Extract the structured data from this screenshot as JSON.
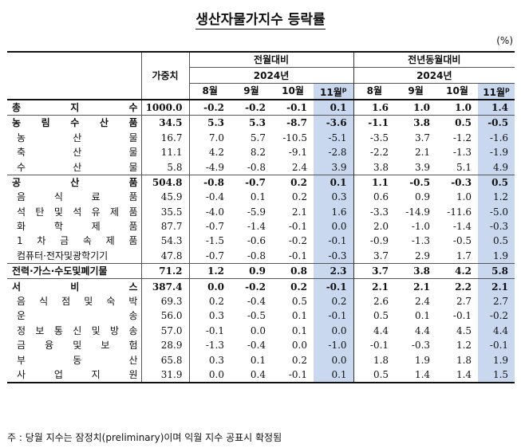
{
  "title": "생산자물가지수 등락률",
  "unit": "(%)",
  "header": {
    "weight": "가중치",
    "mom": "전월대비",
    "yoy": "전년동월대비",
    "year": "2024년",
    "months": [
      "8월",
      "9월",
      "10월",
      "11월"
    ],
    "prelim_mark": "p"
  },
  "rows": [
    {
      "label": "총 지 수",
      "weight": "1000.0",
      "mom": [
        "-0.2",
        "-0.2",
        "-0.1",
        "0.1"
      ],
      "yoy": [
        "1.6",
        "1.0",
        "1.0",
        "1.4"
      ],
      "level": "major"
    },
    {
      "label": "농 림 수 산 품",
      "weight": "34.5",
      "mom": [
        "5.3",
        "5.3",
        "-8.7",
        "-3.6"
      ],
      "yoy": [
        "-1.1",
        "3.8",
        "0.5",
        "-0.5"
      ],
      "level": "major"
    },
    {
      "label": "농 산 물",
      "weight": "16.7",
      "mom": [
        "7.0",
        "5.7",
        "-10.5",
        "-5.1"
      ],
      "yoy": [
        "-3.5",
        "3.7",
        "-1.2",
        "-1.6"
      ],
      "level": "sub"
    },
    {
      "label": "축 산 물",
      "weight": "11.1",
      "mom": [
        "4.2",
        "8.2",
        "-9.1",
        "-2.8"
      ],
      "yoy": [
        "-2.2",
        "2.1",
        "-1.3",
        "-1.9"
      ],
      "level": "sub"
    },
    {
      "label": "수 산 물",
      "weight": "5.8",
      "mom": [
        "-4.9",
        "-0.8",
        "2.4",
        "3.9"
      ],
      "yoy": [
        "3.8",
        "3.9",
        "5.1",
        "4.9"
      ],
      "level": "sub"
    },
    {
      "label": "공 산 품",
      "weight": "504.8",
      "mom": [
        "-0.8",
        "-0.7",
        "0.2",
        "0.1"
      ],
      "yoy": [
        "1.1",
        "-0.5",
        "-0.3",
        "0.5"
      ],
      "level": "major"
    },
    {
      "label": "음 식 료 품",
      "weight": "45.9",
      "mom": [
        "-0.4",
        "0.1",
        "0.2",
        "0.3"
      ],
      "yoy": [
        "0.6",
        "0.9",
        "1.0",
        "1.2"
      ],
      "level": "sub"
    },
    {
      "label": "석 탄 및 석 유 제 품",
      "weight": "35.5",
      "mom": [
        "-4.0",
        "-5.9",
        "2.1",
        "1.6"
      ],
      "yoy": [
        "-3.3",
        "-14.9",
        "-11.6",
        "-5.0"
      ],
      "level": "sub"
    },
    {
      "label": "화 학 제 품",
      "weight": "87.7",
      "mom": [
        "-0.7",
        "-1.4",
        "-0.1",
        "0.0"
      ],
      "yoy": [
        "2.0",
        "-1.0",
        "-1.4",
        "-0.3"
      ],
      "level": "sub"
    },
    {
      "label": "1 차 금 속 제 품",
      "weight": "54.3",
      "mom": [
        "-1.5",
        "-0.6",
        "-0.2",
        "-0.1"
      ],
      "yoy": [
        "-0.9",
        "-1.3",
        "-0.5",
        "0.5"
      ],
      "level": "sub"
    },
    {
      "label": "컴퓨터·전자및광학기기",
      "weight": "47.8",
      "mom": [
        "-0.7",
        "-0.8",
        "-0.1",
        "-0.3"
      ],
      "yoy": [
        "3.7",
        "2.9",
        "1.7",
        "1.9"
      ],
      "level": "sub"
    },
    {
      "label": "전력·가스·수도및폐기물",
      "weight": "71.2",
      "mom": [
        "1.2",
        "0.9",
        "0.8",
        "2.3"
      ],
      "yoy": [
        "3.7",
        "3.8",
        "4.2",
        "5.8"
      ],
      "level": "major"
    },
    {
      "label": "서 비 스",
      "weight": "387.4",
      "mom": [
        "0.0",
        "-0.2",
        "0.2",
        "-0.1"
      ],
      "yoy": [
        "2.1",
        "2.1",
        "2.2",
        "2.1"
      ],
      "level": "major"
    },
    {
      "label": "음 식 점 및 숙 박",
      "weight": "69.3",
      "mom": [
        "0.2",
        "-0.4",
        "0.5",
        "0.2"
      ],
      "yoy": [
        "2.6",
        "2.4",
        "2.7",
        "2.7"
      ],
      "level": "sub"
    },
    {
      "label": "운 송",
      "weight": "56.0",
      "mom": [
        "0.3",
        "-0.5",
        "0.1",
        "-0.1"
      ],
      "yoy": [
        "0.5",
        "0.1",
        "-0.1",
        "-0.2"
      ],
      "level": "sub"
    },
    {
      "label": "정 보 통 신 및 방 송",
      "weight": "57.0",
      "mom": [
        "-0.1",
        "0.0",
        "0.1",
        "0.0"
      ],
      "yoy": [
        "4.4",
        "4.4",
        "4.5",
        "4.4"
      ],
      "level": "sub"
    },
    {
      "label": "금 융 및 보 험",
      "weight": "28.9",
      "mom": [
        "-1.3",
        "-0.4",
        "0.0",
        "-1.0"
      ],
      "yoy": [
        "-0.1",
        "-0.3",
        "1.2",
        "-0.1"
      ],
      "level": "sub"
    },
    {
      "label": "부 동 산",
      "weight": "65.8",
      "mom": [
        "0.3",
        "0.1",
        "0.2",
        "0.0"
      ],
      "yoy": [
        "1.8",
        "1.9",
        "1.8",
        "1.9"
      ],
      "level": "sub"
    },
    {
      "label": "사 업 지 원",
      "weight": "31.9",
      "mom": [
        "0.0",
        "0.4",
        "-0.1",
        "0.1"
      ],
      "yoy": [
        "0.5",
        "1.4",
        "1.4",
        "1.5"
      ],
      "level": "sub"
    }
  ],
  "footnote": "주 : 당월 지수는 잠정치(preliminary)이며 익월 지수 공표시 확정됨",
  "colors": {
    "highlight": "#c9d8ee"
  }
}
